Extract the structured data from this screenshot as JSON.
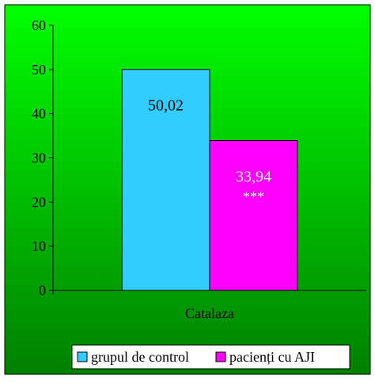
{
  "chart_data": {
    "type": "bar",
    "categories": [
      "Catalaza"
    ],
    "ylim": [
      0,
      60
    ],
    "yticks": [
      0,
      10,
      20,
      30,
      40,
      50,
      60
    ],
    "grid": false,
    "legend_position": "bottom",
    "series": [
      {
        "name": "grupul de control",
        "values": [
          50.02
        ],
        "label": "50,02",
        "color": "#33CCFF",
        "label_color": "#000000"
      },
      {
        "name": "pacienți cu AJI",
        "values": [
          33.94
        ],
        "label": "33,94",
        "annotation": "***",
        "color": "#FF00FF",
        "label_color": "#FFFFFF"
      }
    ],
    "colors": {
      "background_top": "#00FF00",
      "background_bottom": "#008000"
    }
  }
}
